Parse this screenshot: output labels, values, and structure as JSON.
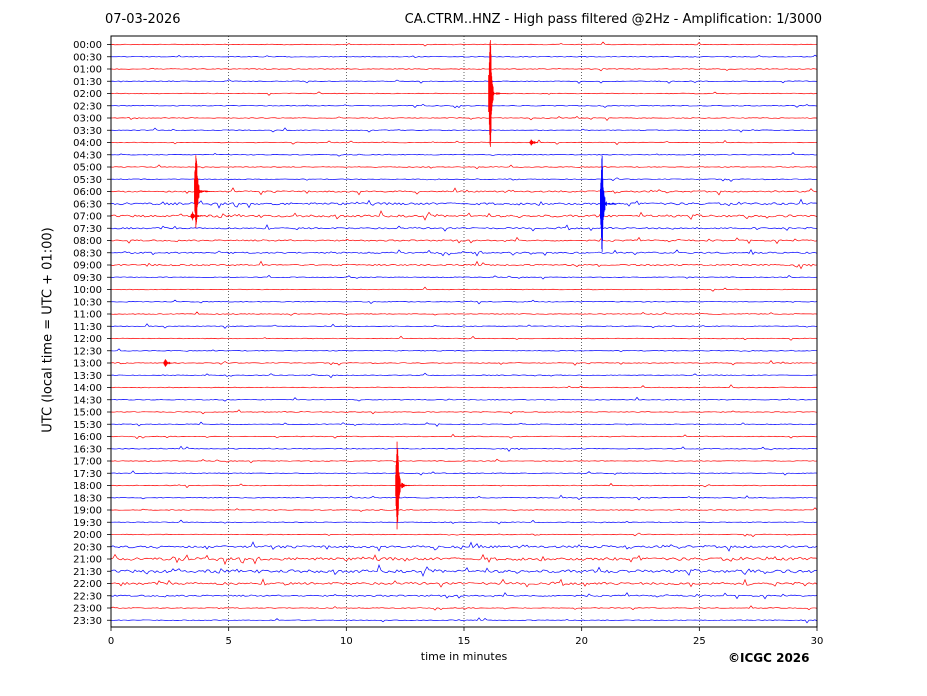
{
  "header": {
    "date": "07-03-2026",
    "title": "CA.CTRM..HNZ - High pass filtered @2Hz - Amplification: 1/3000"
  },
  "footer": {
    "copyright": "©ICGC 2026"
  },
  "chart_data": {
    "type": "line",
    "title": "CA.CTRM..HNZ - High pass filtered @2Hz - Amplification: 1/3000",
    "xlabel": "time in minutes",
    "ylabel": "UTC (local time = UTC + 01:00)",
    "xlim": [
      0,
      30
    ],
    "x_ticks": [
      0,
      5,
      10,
      15,
      20,
      25,
      30
    ],
    "vertical_grid": "dotted",
    "row_labels": [
      "00:00",
      "00:30",
      "01:00",
      "01:30",
      "02:00",
      "02:30",
      "03:00",
      "03:30",
      "04:00",
      "04:30",
      "05:00",
      "05:30",
      "06:00",
      "06:30",
      "07:00",
      "07:30",
      "08:00",
      "08:30",
      "09:00",
      "09:30",
      "10:00",
      "10:30",
      "11:00",
      "11:30",
      "12:00",
      "12:30",
      "13:00",
      "13:30",
      "14:00",
      "14:30",
      "15:00",
      "15:30",
      "16:00",
      "16:30",
      "17:00",
      "17:30",
      "18:00",
      "18:30",
      "19:00",
      "19:30",
      "20:00",
      "20:30",
      "21:00",
      "21:30",
      "22:00",
      "22:30",
      "23:00",
      "23:30"
    ],
    "trace_colors": [
      "#ff0000",
      "#0000ff"
    ],
    "noise_levels": [
      1,
      1,
      1,
      1,
      1,
      1,
      1,
      1,
      1,
      1,
      1,
      1,
      2,
      3,
      3,
      2,
      2,
      2,
      2,
      1,
      1,
      1,
      1,
      1,
      1,
      1,
      1,
      1,
      1,
      1,
      1,
      1,
      1,
      1,
      1,
      1,
      1,
      1,
      1,
      1,
      1,
      3,
      4,
      4,
      3,
      2,
      1,
      1
    ],
    "events": [
      {
        "row": 4,
        "minute": 16.15,
        "amplitude": 6.0
      },
      {
        "row": 8,
        "minute": 17.9,
        "amplitude": 0.3
      },
      {
        "row": 12,
        "minute": 3.65,
        "amplitude": 4.6
      },
      {
        "row": 13,
        "minute": 20.9,
        "amplitude": 4.6
      },
      {
        "row": 14,
        "minute": 3.5,
        "amplitude": 0.4
      },
      {
        "row": 26,
        "minute": 2.35,
        "amplitude": 0.4
      },
      {
        "row": 36,
        "minute": 12.2,
        "amplitude": 4.4
      }
    ]
  }
}
